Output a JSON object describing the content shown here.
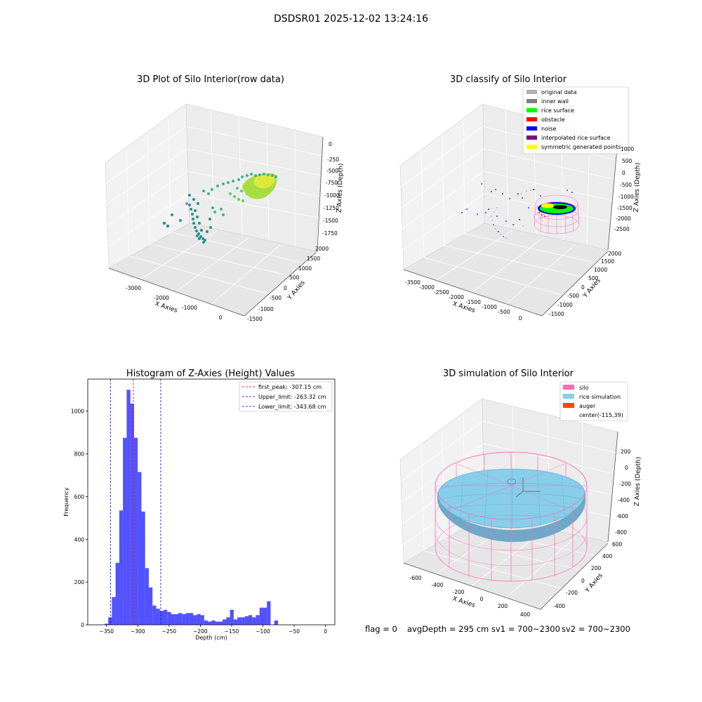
{
  "suptitle": "DSDSR01 2025-12-02 13:24:16",
  "footer": {
    "flag": "flag = 0",
    "avg_depth": "avgDepth = 295 cm",
    "sv1": "sv1 = 700~2300",
    "sv2": "sv2 = 700~2300"
  },
  "chart_data": [
    {
      "type": "scatter",
      "projection": "3d",
      "title": "3D Plot of Silo Interior(row data)",
      "xlabel": "X Axies",
      "ylabel": "Y Axies",
      "zlabel": "Z Axies (Depth)",
      "x_ticks": [
        "-3000",
        "-2000",
        "-1000",
        "0"
      ],
      "y_ticks": [
        "-1500",
        "-1000",
        "-500",
        "0",
        "500",
        "1000",
        "1500",
        "2000"
      ],
      "z_ticks": [
        "0",
        "-250",
        "-500",
        "-750",
        "-1000",
        "-1250",
        "-1500",
        "-1750"
      ],
      "colormap": [
        "#21918c",
        "#5ec962",
        "#fde725"
      ]
    },
    {
      "type": "scatter",
      "projection": "3d",
      "title": "3D classify of Silo Interior",
      "xlabel": "X Axies",
      "ylabel": "Y Axies",
      "zlabel": "Z Axies (Depth)",
      "x_ticks": [
        "-3500",
        "-3000",
        "-2500",
        "-2000",
        "-1500",
        "-1000",
        "-500",
        "0"
      ],
      "y_ticks": [
        "-1500",
        "-1000",
        "-500",
        "0",
        "500",
        "1000",
        "1500",
        "2000"
      ],
      "z_ticks": [
        "1000",
        "500",
        "0",
        "-500",
        "-1000",
        "-1500",
        "-2000",
        "-2500"
      ],
      "legend_position": "top-right",
      "legend": [
        {
          "label": "original data",
          "color": "#b0b0b0"
        },
        {
          "label": "inner wall",
          "color": "#808080"
        },
        {
          "label": "rice surface",
          "color": "#00ff00"
        },
        {
          "label": "obstacle",
          "color": "#ff0000"
        },
        {
          "label": "noise",
          "color": "#0000ff"
        },
        {
          "label": "interpolated rice surface",
          "color": "#800080"
        },
        {
          "label": "symmetric generated points",
          "color": "#ffff00"
        }
      ]
    },
    {
      "type": "bar",
      "subtype": "histogram",
      "title": "Histogram of Z-Axies (Height) Values",
      "xlabel": "Depth (cm)",
      "ylabel": "Frequency",
      "xlim": [
        -380,
        15
      ],
      "ylim": [
        0,
        1150
      ],
      "x_ticks": [
        -350,
        -300,
        -250,
        -200,
        -150,
        -100,
        -50,
        0
      ],
      "y_ticks": [
        0,
        200,
        400,
        600,
        800,
        1000
      ],
      "bar_color": "#0000ff",
      "bin_width": 5.9,
      "bin_start": -353.2,
      "values": [
        5,
        35,
        130,
        290,
        535,
        875,
        1100,
        1035,
        875,
        715,
        530,
        265,
        175,
        90,
        75,
        65,
        70,
        60,
        50,
        50,
        55,
        50,
        55,
        55,
        45,
        50,
        45,
        20,
        15,
        20,
        15,
        15,
        25,
        35,
        70,
        25,
        35,
        35,
        40,
        45,
        35,
        45,
        80,
        80,
        110,
        0,
        20
      ],
      "value_overrides_note": "",
      "vlines": [
        {
          "label": "first_peak: -307.15 cm",
          "x": -307.15,
          "color": "#ff0000"
        },
        {
          "label": "Upper_limit: -263.32 cm",
          "x": -263.32,
          "color": "#0000ff"
        },
        {
          "label": "Lower_limit: -343.68 cm",
          "x": -343.68,
          "color": "#0000ff"
        }
      ],
      "legend_position": "top-right"
    },
    {
      "type": "surface",
      "projection": "3d",
      "title": "3D simulation of Silo Interior",
      "xlabel": "X Axies",
      "ylabel": "Y Axies",
      "zlabel": "Z Axies (Depth)",
      "x_ticks": [
        "-600",
        "-400",
        "-200",
        "0",
        "200",
        "400"
      ],
      "y_ticks": [
        "-400",
        "-200",
        "0",
        "200",
        "400",
        "600"
      ],
      "z_ticks": [
        "200",
        "0",
        "-200",
        "-400",
        "-600",
        "-800"
      ],
      "legend_position": "top-right",
      "legend": [
        {
          "label": "silo",
          "color": "#ff69b4"
        },
        {
          "label": "rice simulation",
          "color": "#87ceeb"
        },
        {
          "label": "auger",
          "color": "#ff4500"
        },
        {
          "label": "center(-115,39)",
          "color": ""
        }
      ]
    }
  ]
}
